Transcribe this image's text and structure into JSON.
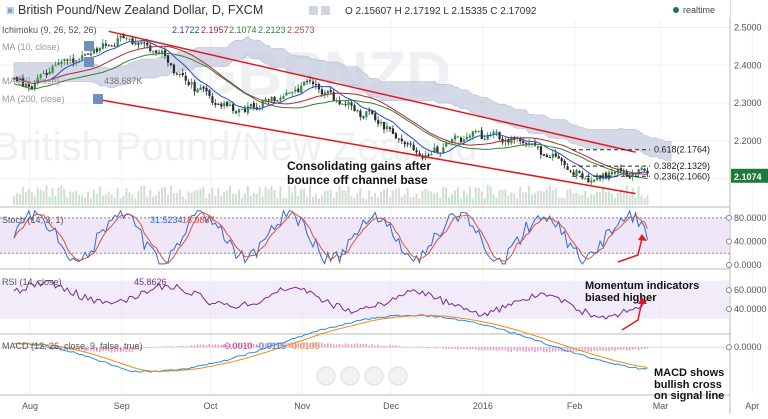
{
  "header": {
    "symbol": "British Pound/New Zealand Dollar, D, FXCM",
    "ohlc": "O 2.15607  H 2.17192  L 2.15335  C 2.17092",
    "realtime": "realtime"
  },
  "legends": {
    "ichimoku": "Ichimoku (9, 26, 52, 26)",
    "ichimoku_values": [
      "2.1722",
      "2.1957",
      "2.1074",
      "2.2123",
      "2.2573"
    ],
    "ma10": "MA (10, close)",
    "ma20": "MA (20, close)",
    "ma200": "MA (200, close)",
    "volume": "438.687K",
    "stoch": "Stoch (14, 3, 1)",
    "stoch_values": [
      "31.5234",
      "18.9887"
    ],
    "rsi": "RSI (14, close)",
    "rsi_value": "45.8626",
    "macd": "MACD (12, 26, close, 9, false, true)",
    "macd_values": [
      "-0.0010",
      "-0.0115",
      "-0.0105"
    ]
  },
  "annotations": {
    "channel": [
      "Consolidating gains after",
      "bounce off channel base"
    ],
    "momentum": [
      "Momentum indicators",
      "biased higher"
    ],
    "macd": [
      "MACD shows",
      "bullish cross",
      "on signal line"
    ]
  },
  "fib": {
    "labels": [
      "0.618(2.1764)",
      "0.382(2.1329)",
      "0.236(2.1060)"
    ],
    "values": [
      2.1764,
      2.1329,
      2.106
    ]
  },
  "colors": {
    "up": "#2f8b3f",
    "down": "#2b2b2b",
    "cloud": "#c7cbe0",
    "channel": "#e0191e",
    "tenkan": "#2a49c6",
    "kijun": "#a72d3c",
    "chikou": "#3c7b32",
    "stoch_k": "#2b6bd6",
    "stoch_d": "#e0503a",
    "osc_fill": "#e8dcf5",
    "rsi_line": "#7a2a8f",
    "macd_line": "#2b8fd6",
    "signal_line": "#f08a1c",
    "hist": "#e8a0c8",
    "price_tag": "#1f7a3a"
  },
  "chart_data": [
    {
      "type": "candlestick",
      "title": "British Pound/New Zealand Dollar, D, FXCM",
      "x_labels": [
        "Aug",
        "Sep",
        "Oct",
        "Nov",
        "Dec",
        "2016",
        "Feb",
        "Mar",
        "Apr"
      ],
      "y_ticks": [
        "2.5000",
        "2.4000",
        "2.3000",
        "2.2000",
        "2.1000"
      ],
      "y_tick_values": [
        2.5,
        2.4,
        2.3,
        2.2,
        2.1
      ],
      "ylim": [
        2.03,
        2.52
      ],
      "last_price": "2.1074",
      "last_price_value": 2.1074,
      "anchors": [
        {
          "d": 0,
          "p": 2.36
        },
        {
          "d": 6,
          "p": 2.34
        },
        {
          "d": 14,
          "p": 2.4
        },
        {
          "d": 22,
          "p": 2.42
        },
        {
          "d": 30,
          "p": 2.45
        },
        {
          "d": 37,
          "p": 2.47
        },
        {
          "d": 44,
          "p": 2.46
        },
        {
          "d": 50,
          "p": 2.43
        },
        {
          "d": 56,
          "p": 2.37
        },
        {
          "d": 62,
          "p": 2.34
        },
        {
          "d": 70,
          "p": 2.29
        },
        {
          "d": 78,
          "p": 2.28
        },
        {
          "d": 86,
          "p": 2.31
        },
        {
          "d": 94,
          "p": 2.33
        },
        {
          "d": 100,
          "p": 2.36
        },
        {
          "d": 108,
          "p": 2.31
        },
        {
          "d": 116,
          "p": 2.28
        },
        {
          "d": 124,
          "p": 2.25
        },
        {
          "d": 132,
          "p": 2.19
        },
        {
          "d": 140,
          "p": 2.16
        },
        {
          "d": 148,
          "p": 2.2
        },
        {
          "d": 156,
          "p": 2.22
        },
        {
          "d": 164,
          "p": 2.21
        },
        {
          "d": 172,
          "p": 2.2
        },
        {
          "d": 178,
          "p": 2.17
        },
        {
          "d": 184,
          "p": 2.15
        },
        {
          "d": 188,
          "p": 2.12
        },
        {
          "d": 192,
          "p": 2.1
        },
        {
          "d": 196,
          "p": 2.09
        },
        {
          "d": 202,
          "p": 2.12
        },
        {
          "d": 208,
          "p": 2.11
        },
        {
          "d": 214,
          "p": 2.12
        }
      ],
      "channel": [
        {
          "from": {
            "d": 32,
            "p": 2.49
          },
          "to": {
            "d": 210,
            "p": 2.17
          }
        },
        {
          "from": {
            "d": 28,
            "p": 2.31
          },
          "to": {
            "d": 210,
            "p": 2.06
          }
        }
      ]
    },
    {
      "type": "line",
      "title": "Stoch (14, 3, 1)",
      "y_ticks": [
        "80.0000",
        "40.0000",
        "0.0000"
      ],
      "y_tick_values": [
        80,
        40,
        0
      ],
      "ylim": [
        -5,
        95
      ]
    },
    {
      "type": "line",
      "title": "RSI (14, close)",
      "y_ticks": [
        "60.0000",
        "40.0000"
      ],
      "y_tick_values": [
        60,
        40
      ],
      "ylim": [
        15,
        80
      ]
    },
    {
      "type": "line",
      "title": "MACD (12, 26, close, 9, false, true)",
      "y_ticks": [
        "0.0000"
      ],
      "y_tick_values": [
        0
      ],
      "ylim": [
        -0.05,
        0.012
      ]
    }
  ]
}
